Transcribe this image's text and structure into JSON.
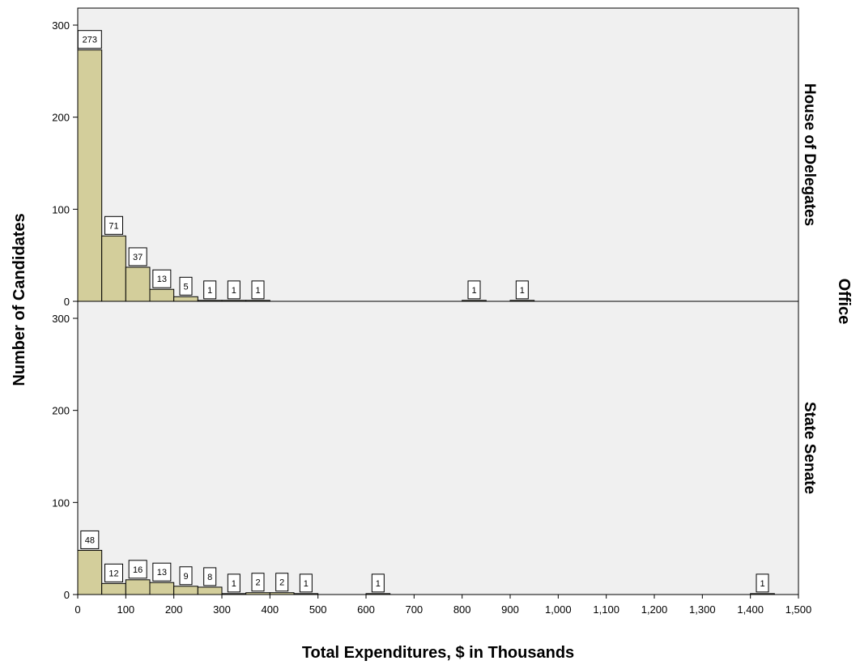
{
  "chart_data": {
    "type": "bar",
    "xlabel": "Total Expenditures, $ in Thousands",
    "ylabel": "Number of Candidates",
    "facet_title": "Office",
    "xlim": [
      0,
      1500
    ],
    "ylim": [
      0,
      300
    ],
    "bin_width": 50,
    "x_ticks": [
      0,
      100,
      200,
      300,
      400,
      500,
      600,
      700,
      800,
      900,
      1000,
      1100,
      1200,
      1300,
      1400,
      1500
    ],
    "x_tick_labels": [
      "0",
      "100",
      "200",
      "300",
      "400",
      "500",
      "600",
      "700",
      "800",
      "900",
      "1,000",
      "1,100",
      "1,200",
      "1,300",
      "1,400",
      "1,500"
    ],
    "y_ticks": [
      0,
      100,
      200,
      300
    ],
    "y_tick_labels": [
      "0",
      "100",
      "200",
      "300"
    ],
    "bar_color": "#d3ce9b",
    "panel_background": "#f0f0f0",
    "panels": [
      {
        "name": "House of Delegates",
        "bins": [
          {
            "x0": 0,
            "x1": 50,
            "count": 273
          },
          {
            "x0": 50,
            "x1": 100,
            "count": 71
          },
          {
            "x0": 100,
            "x1": 150,
            "count": 37
          },
          {
            "x0": 150,
            "x1": 200,
            "count": 13
          },
          {
            "x0": 200,
            "x1": 250,
            "count": 5
          },
          {
            "x0": 250,
            "x1": 300,
            "count": 1
          },
          {
            "x0": 300,
            "x1": 350,
            "count": 1
          },
          {
            "x0": 350,
            "x1": 400,
            "count": 1
          },
          {
            "x0": 800,
            "x1": 850,
            "count": 1
          },
          {
            "x0": 900,
            "x1": 950,
            "count": 1
          }
        ]
      },
      {
        "name": "State Senate",
        "bins": [
          {
            "x0": 0,
            "x1": 50,
            "count": 48
          },
          {
            "x0": 50,
            "x1": 100,
            "count": 12
          },
          {
            "x0": 100,
            "x1": 150,
            "count": 16
          },
          {
            "x0": 150,
            "x1": 200,
            "count": 13
          },
          {
            "x0": 200,
            "x1": 250,
            "count": 9
          },
          {
            "x0": 250,
            "x1": 300,
            "count": 8
          },
          {
            "x0": 300,
            "x1": 350,
            "count": 1
          },
          {
            "x0": 350,
            "x1": 400,
            "count": 2
          },
          {
            "x0": 400,
            "x1": 450,
            "count": 2
          },
          {
            "x0": 450,
            "x1": 500,
            "count": 1
          },
          {
            "x0": 600,
            "x1": 650,
            "count": 1
          },
          {
            "x0": 1400,
            "x1": 1450,
            "count": 1
          }
        ]
      }
    ]
  }
}
